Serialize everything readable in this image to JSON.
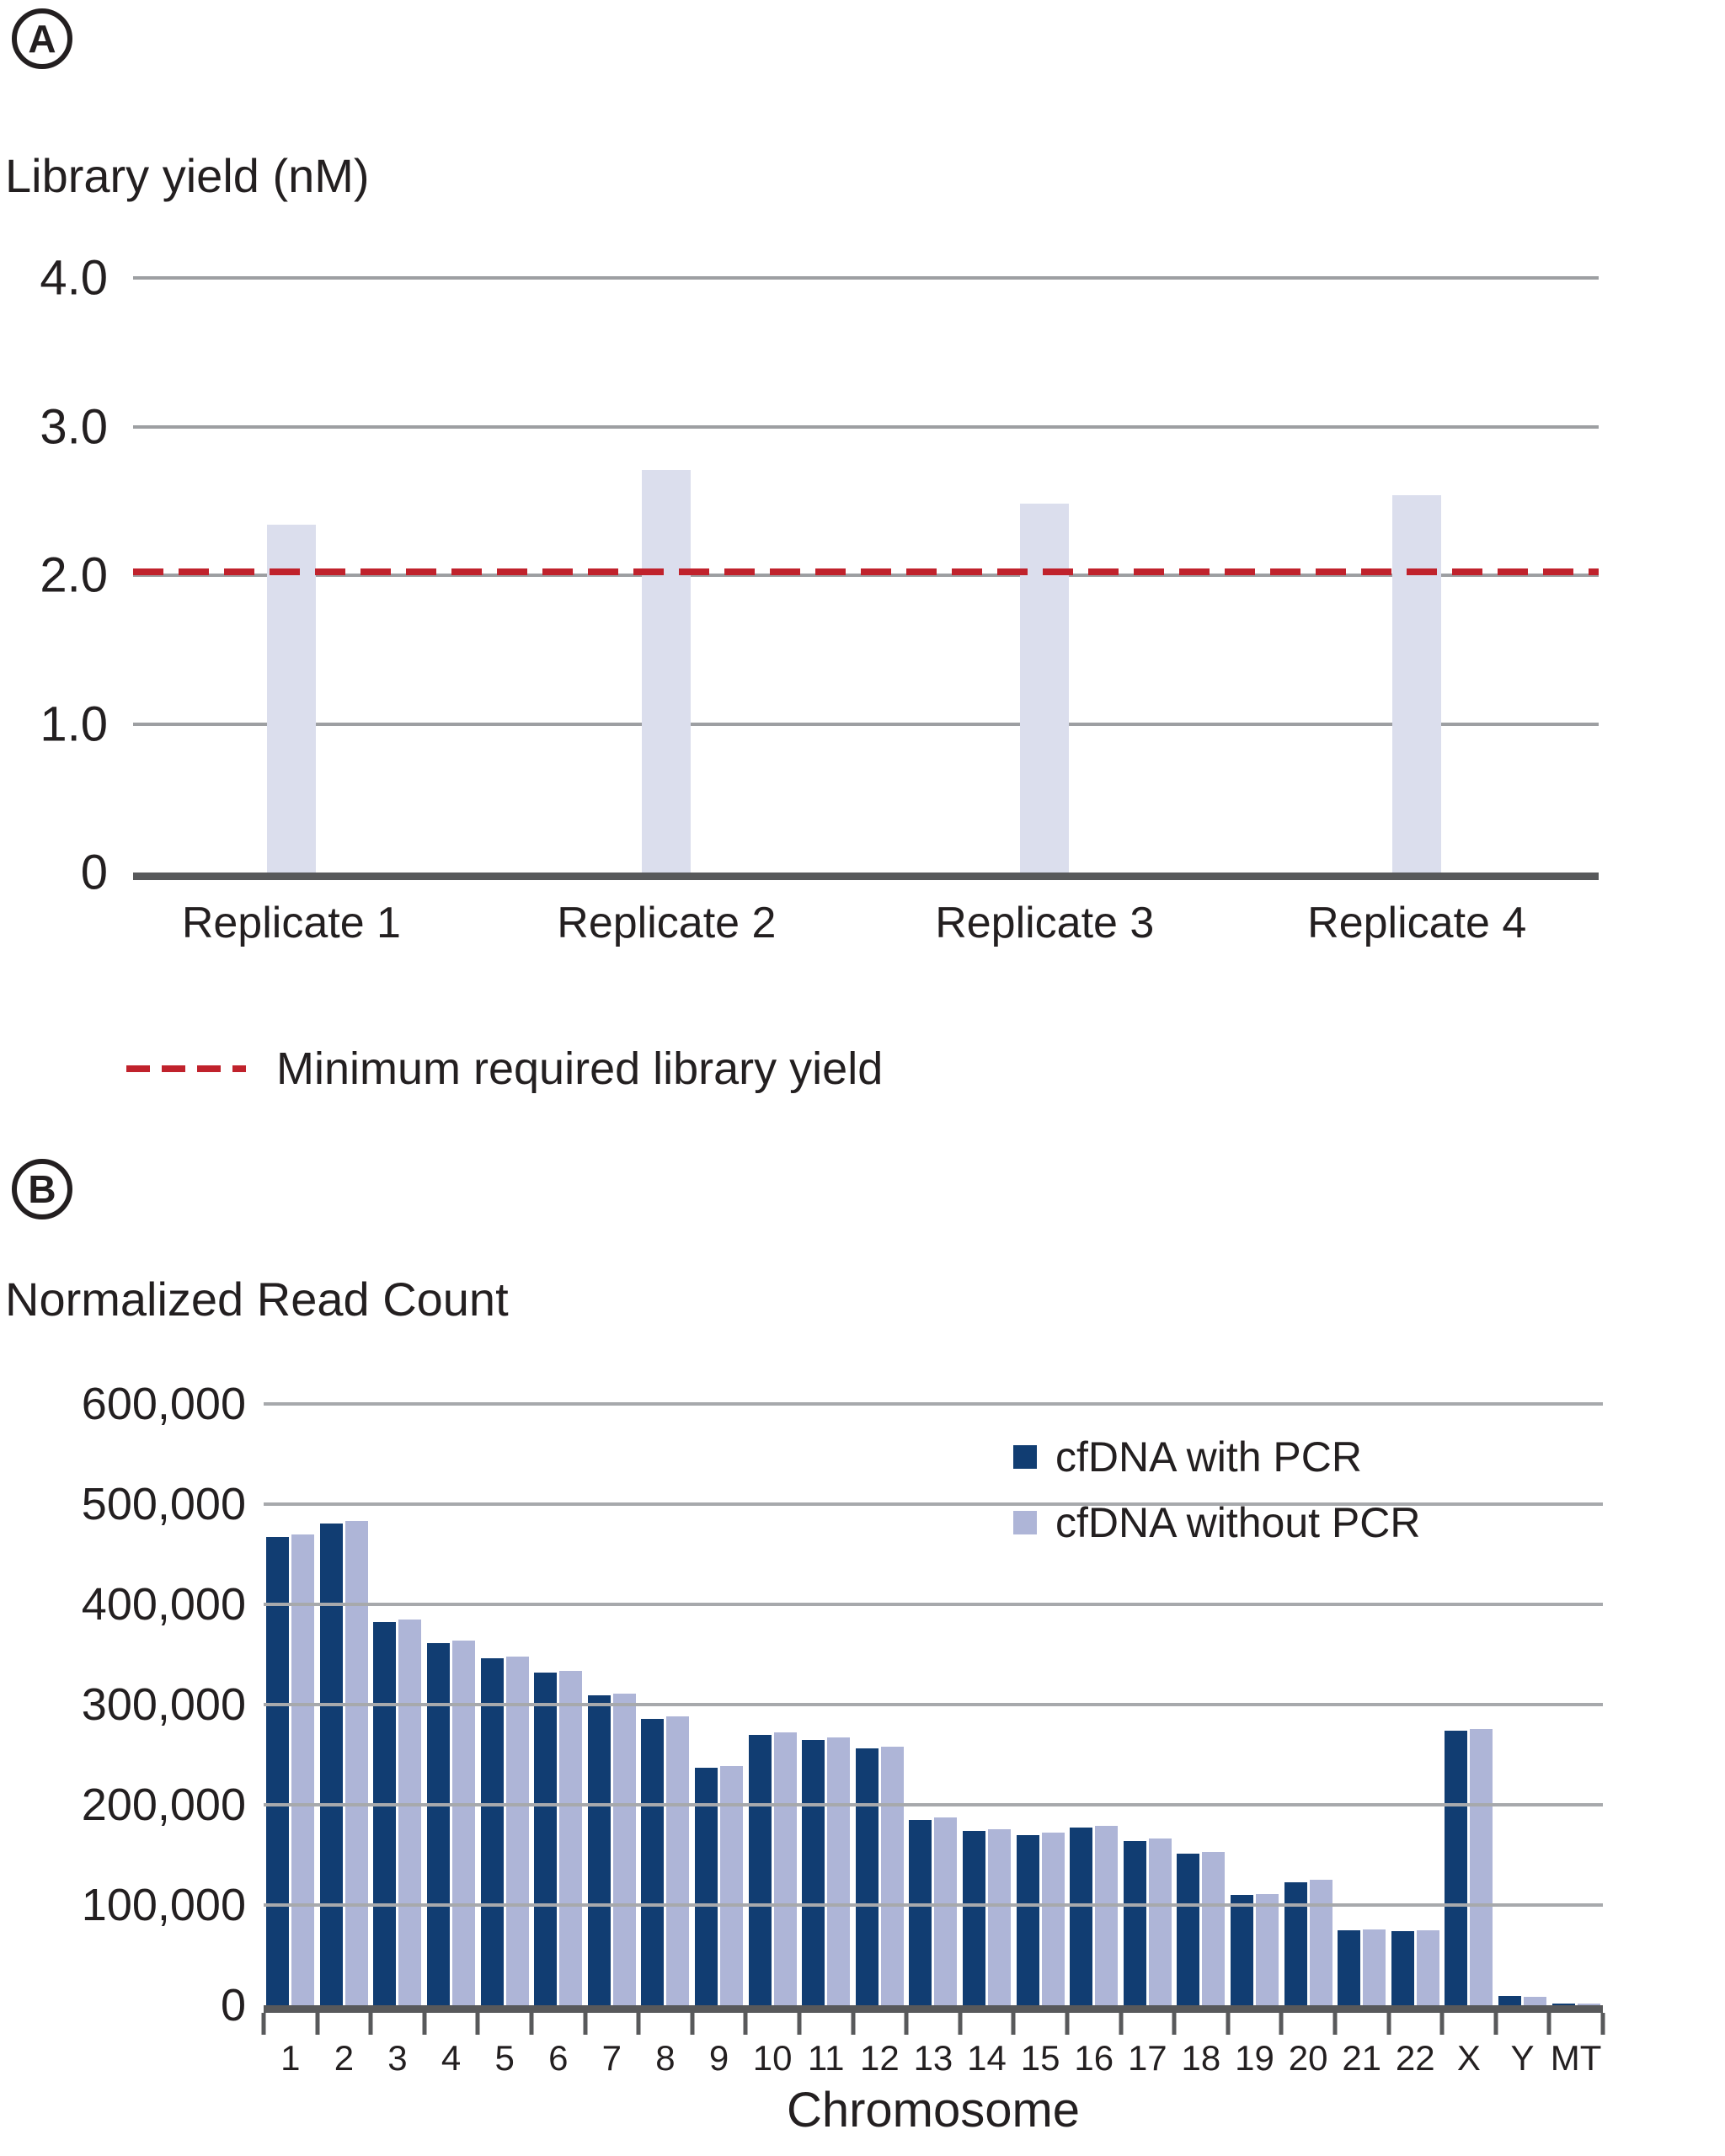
{
  "panel_a": {
    "label": "A",
    "title": "Library yield (nM)",
    "legend_label": "Minimum required library yield",
    "colors": {
      "bar": "#dbdeed",
      "threshold": "#c0222c",
      "gridline": "#9d9fa2",
      "axis": "#58595b"
    }
  },
  "panel_b": {
    "label": "B",
    "title": "Normalized Read Count",
    "xlabel": "Chromosome",
    "legend": [
      {
        "label": "cfDNA with PCR",
        "color": "#113d72"
      },
      {
        "label": "cfDNA without PCR",
        "color": "#aeb5d7"
      }
    ],
    "colors": {
      "gridline": "#a7a9ac",
      "axis": "#58595b"
    }
  },
  "chart_data": [
    {
      "type": "bar",
      "panel": "A",
      "title": "Library yield (nM)",
      "categories": [
        "Replicate 1",
        "Replicate 2",
        "Replicate 3",
        "Replicate 4"
      ],
      "values": [
        2.34,
        2.71,
        2.48,
        2.54
      ],
      "bar_color": "#dbdeed",
      "ylim": [
        0,
        4.0
      ],
      "yticks": [
        "4.0",
        "3.0",
        "2.0",
        "1.0",
        "0"
      ],
      "grid": true,
      "threshold": {
        "value": 2.0,
        "label": "Minimum required library yield",
        "style": "dashed",
        "color": "#c0222c"
      },
      "legend_position": "below"
    },
    {
      "type": "bar",
      "panel": "B",
      "title": "Normalized Read Count",
      "xlabel": "Chromosome",
      "categories": [
        "1",
        "2",
        "3",
        "4",
        "5",
        "6",
        "7",
        "8",
        "9",
        "10",
        "11",
        "12",
        "13",
        "14",
        "15",
        "16",
        "17",
        "18",
        "19",
        "20",
        "21",
        "22",
        "X",
        "Y",
        "MT"
      ],
      "series": [
        {
          "name": "cfDNA with PCR",
          "color": "#113d72",
          "values": [
            467000,
            481000,
            382000,
            361000,
            346000,
            332000,
            309000,
            286000,
            237000,
            270000,
            265000,
            256000,
            185000,
            174000,
            170000,
            177000,
            164000,
            151000,
            110000,
            123000,
            75000,
            74000,
            274000,
            9000,
            2000
          ]
        },
        {
          "name": "cfDNA without PCR",
          "color": "#aeb5d7",
          "values": [
            470000,
            483000,
            385000,
            364000,
            348000,
            334000,
            311000,
            288000,
            239000,
            272000,
            267000,
            258000,
            187000,
            176000,
            172000,
            179000,
            166000,
            153000,
            111000,
            125000,
            76000,
            75000,
            276000,
            8000,
            2000
          ]
        }
      ],
      "ylim": [
        0,
        600000
      ],
      "yticks": [
        "600,000",
        "500,000",
        "400,000",
        "300,000",
        "200,000",
        "100,000",
        "0"
      ],
      "grid": true,
      "legend_position": "top-right"
    }
  ]
}
